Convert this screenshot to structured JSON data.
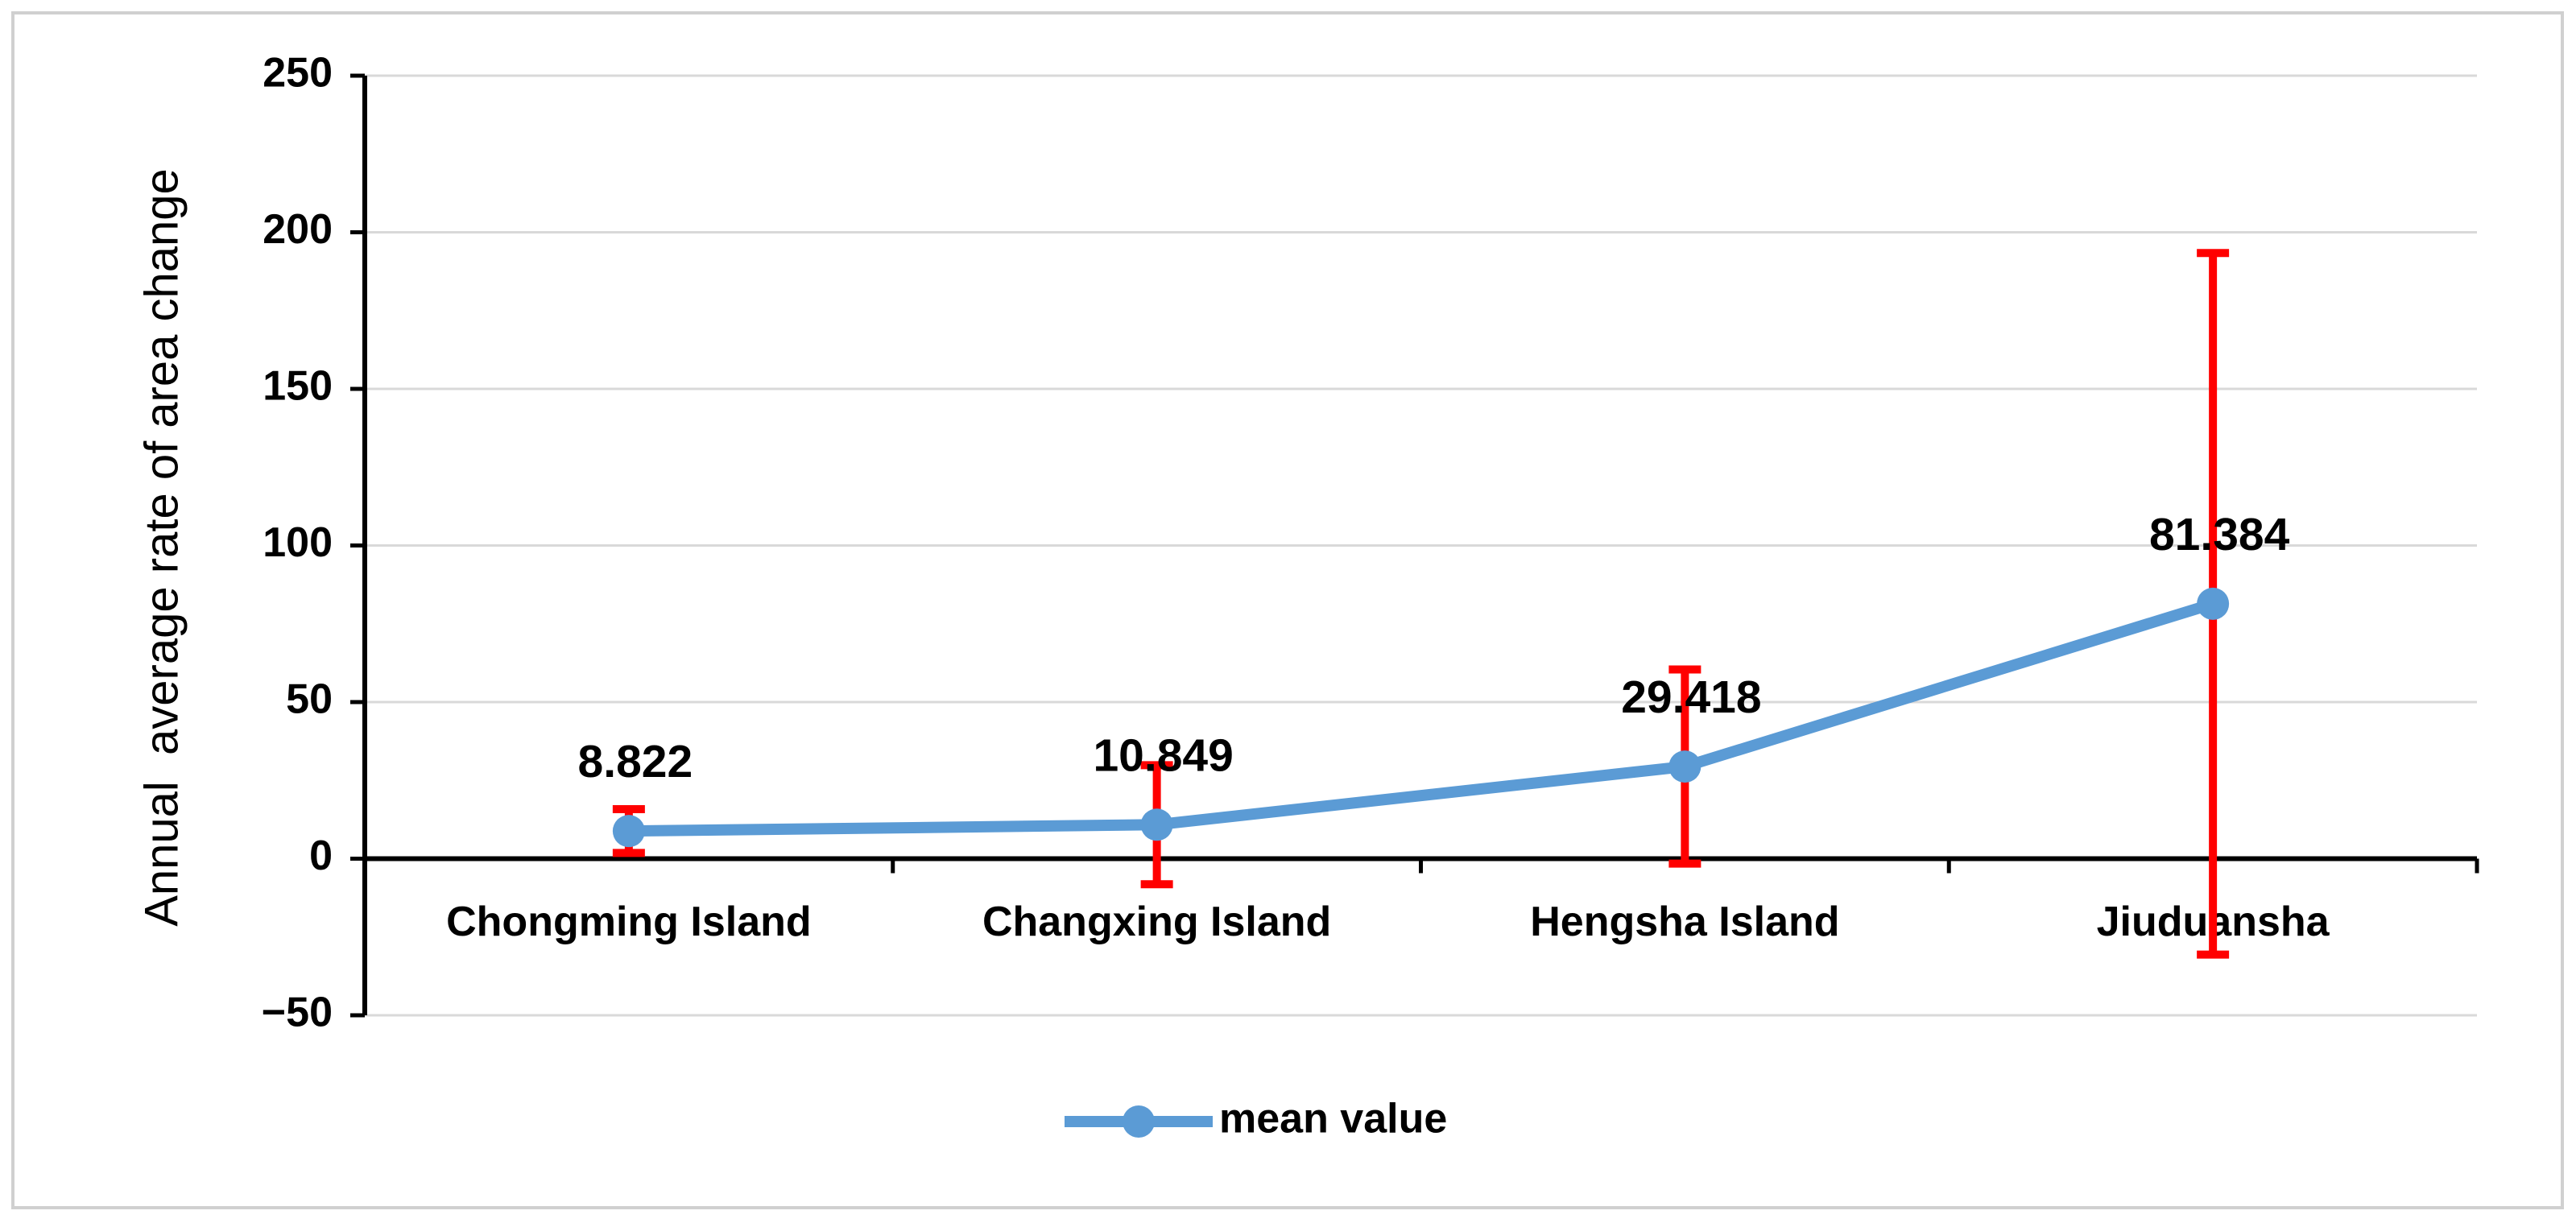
{
  "chart_data": {
    "type": "line",
    "y_label": "Annual  average rate of area change",
    "categories": [
      "Chongming Island",
      "Changxing Island",
      "Hengsha Island",
      "Jiuduansha"
    ],
    "series": [
      {
        "name": "mean value",
        "color": "#5b9bd5",
        "values": [
          8.822,
          10.849,
          29.418,
          81.384
        ],
        "errors": [
          7,
          19,
          31,
          112
        ],
        "error_color": "#ff0000"
      }
    ],
    "ylim": [
      -50,
      250
    ],
    "yticks": [
      {
        "value": -50,
        "label": "−50"
      },
      0,
      50,
      100,
      150,
      200,
      250
    ],
    "grid": true,
    "legend": "bottom"
  }
}
